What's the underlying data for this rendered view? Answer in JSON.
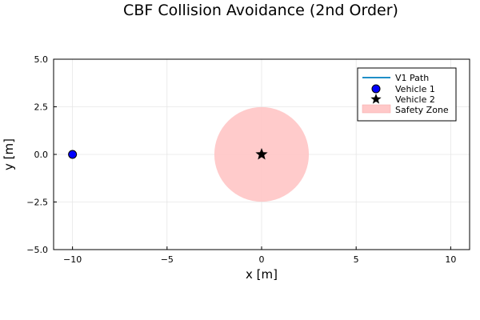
{
  "chart_data": {
    "type": "scatter",
    "title": "CBF Collision Avoidance (2nd Order)",
    "xlabel": "x [m]",
    "ylabel": "y [m]",
    "xlim": [
      -11,
      11
    ],
    "ylim": [
      -5,
      5
    ],
    "xticks": [
      -10,
      -5,
      0,
      5,
      10
    ],
    "xtick_labels": [
      "−10",
      "−5",
      "0",
      "5",
      "10"
    ],
    "yticks": [
      -5,
      -2.5,
      0,
      2.5,
      5
    ],
    "ytick_labels": [
      "−5.0",
      "−2.5",
      "0.0",
      "2.5",
      "5.0"
    ],
    "grid": true,
    "legend_position": "top-right",
    "series": [
      {
        "name": "V1 Path",
        "kind": "line",
        "color": "#1f8fc7",
        "x": [],
        "y": []
      },
      {
        "name": "Vehicle 1",
        "kind": "circle-marker",
        "color": "#0000ff",
        "x": [
          -10
        ],
        "y": [
          0
        ]
      },
      {
        "name": "Vehicle 2",
        "kind": "star-marker",
        "color": "#000000",
        "x": [
          0
        ],
        "y": [
          0
        ]
      },
      {
        "name": "Safety Zone",
        "kind": "circle-region",
        "color": "#ffc8c8",
        "center": [
          0,
          0
        ],
        "radius": 2.5
      }
    ]
  }
}
